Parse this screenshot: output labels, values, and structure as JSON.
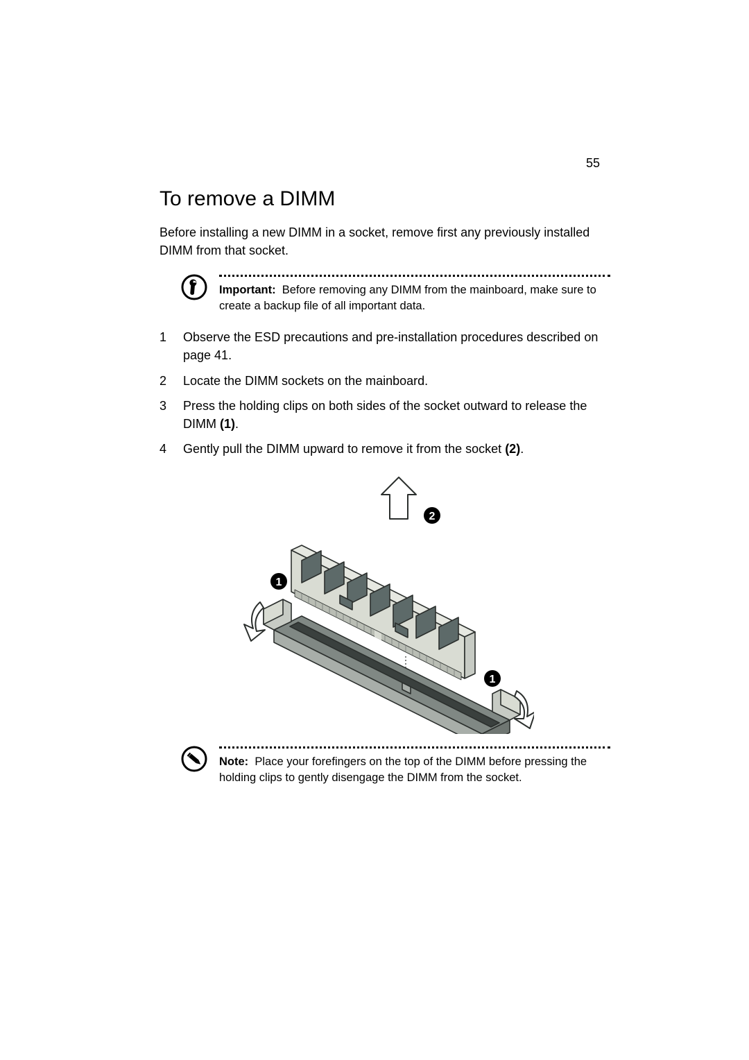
{
  "page_number": "55",
  "heading": "To remove a DIMM",
  "intro": "Before installing a new DIMM in a socket, remove first any previously installed DIMM from that socket.",
  "important": {
    "label": "Important:",
    "text": "Before removing any DIMM from the mainboard, make sure to create a backup file of all important data."
  },
  "steps": [
    {
      "text": "Observe the ESD precautions and pre-installation procedures described on page 41."
    },
    {
      "text": "Locate the DIMM sockets on the mainboard."
    },
    {
      "text_html": "Press the holding clips on both sides of the socket outward to release the DIMM <b>(1)</b>."
    },
    {
      "text_html": "Gently pull the DIMM upward to remove it from the socket <b>(2)</b>."
    }
  ],
  "note": {
    "label": "Note:",
    "text": "Place your forefingers on the top of the DIMM before pressing the holding clips to gently disengage the DIMM from the socket."
  },
  "figure": {
    "callout_labels": [
      "1",
      "2",
      "1"
    ],
    "colors": {
      "dimm_body": "#d9dcd3",
      "dimm_chips": "#5d6a69",
      "socket_body": "#808884",
      "socket_front": "#a8aea9",
      "slot_dark": "#3a403e",
      "clip": "#c7cbc4",
      "outline": "#2b2f2d",
      "arrow_fill": "#ffffff",
      "callout_fill": "#000000",
      "callout_text": "#ffffff",
      "pins": "#b9bdb4"
    }
  },
  "typography": {
    "heading_pt": 22,
    "body_pt": 13.5,
    "callout_pt": 12.5,
    "font_family": "Segoe UI / Helvetica"
  },
  "page_bg": "#ffffff",
  "text_color": "#000000"
}
